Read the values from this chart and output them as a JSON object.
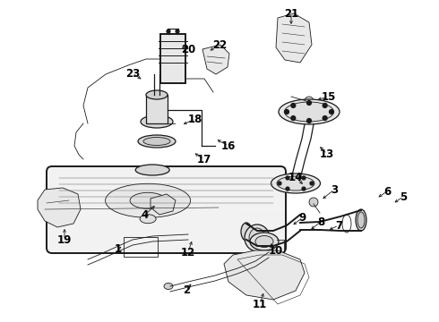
{
  "bg_color": "#ffffff",
  "line_color": "#1a1a1a",
  "label_color": "#000000",
  "lw": 0.9,
  "lw_thin": 0.6,
  "lw_thick": 1.4,
  "font_size": 8.5
}
